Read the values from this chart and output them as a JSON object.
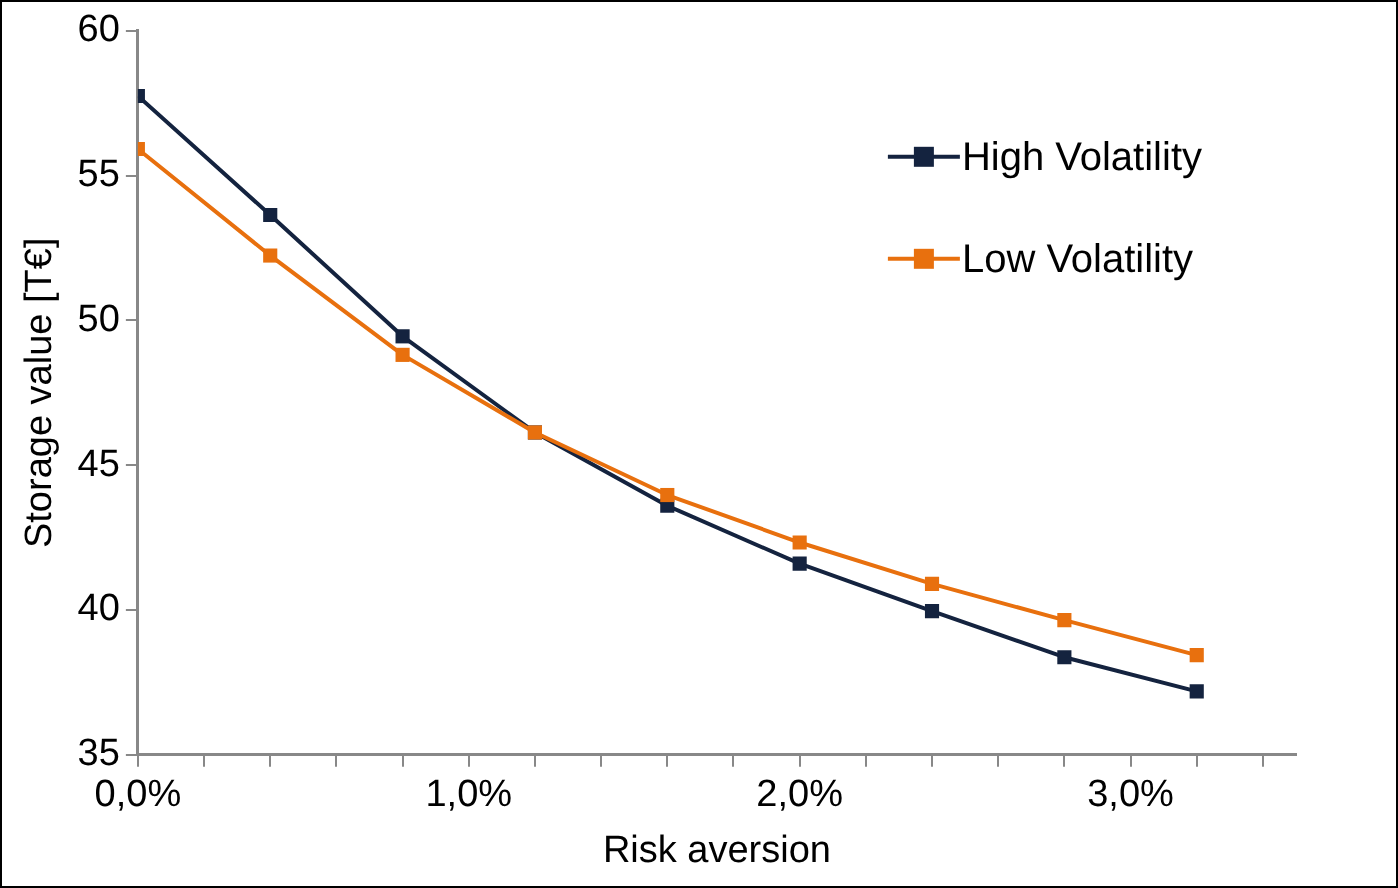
{
  "chart_data": {
    "type": "line",
    "xlabel": "Risk aversion",
    "ylabel": "Storage value [T€]",
    "x": [
      0,
      0.4,
      0.8,
      1.2,
      1.6,
      2.0,
      2.4,
      2.8,
      3.2
    ],
    "series": [
      {
        "name": "High Volatility",
        "color": "#14233f",
        "values": [
          57.75,
          53.64,
          49.45,
          46.13,
          43.6,
          41.6,
          39.96,
          38.37,
          37.19
        ]
      },
      {
        "name": "Low Volatility",
        "color": "#e8700e",
        "values": [
          55.92,
          52.24,
          48.81,
          46.13,
          43.97,
          42.33,
          40.9,
          39.65,
          38.44
        ]
      }
    ],
    "xlim": [
      0,
      3.5
    ],
    "xticks": [
      {
        "value": 0,
        "label": "0,0%"
      },
      {
        "value": 0.2,
        "label": null
      },
      {
        "value": 0.4,
        "label": null
      },
      {
        "value": 0.6,
        "label": null
      },
      {
        "value": 0.8,
        "label": null
      },
      {
        "value": 1.0,
        "label": "1,0%"
      },
      {
        "value": 1.2,
        "label": null
      },
      {
        "value": 1.4,
        "label": null
      },
      {
        "value": 1.6,
        "label": null
      },
      {
        "value": 1.8,
        "label": null
      },
      {
        "value": 2.0,
        "label": "2,0%"
      },
      {
        "value": 2.2,
        "label": null
      },
      {
        "value": 2.4,
        "label": null
      },
      {
        "value": 2.6,
        "label": null
      },
      {
        "value": 2.8,
        "label": null
      },
      {
        "value": 3.0,
        "label": "3,0%"
      },
      {
        "value": 3.2,
        "label": null
      },
      {
        "value": 3.4,
        "label": null
      }
    ],
    "ylim": [
      35,
      60
    ],
    "yticks": [
      35,
      40,
      45,
      50,
      55,
      60
    ],
    "grid": false,
    "legend": "top right",
    "marker": "square",
    "line_style": "solid"
  }
}
